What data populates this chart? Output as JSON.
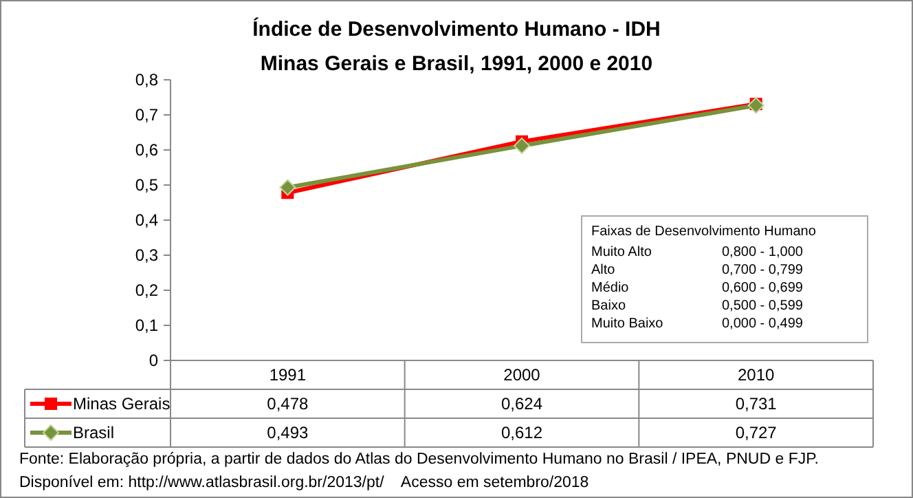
{
  "chart_data": {
    "type": "line",
    "title": "Índice de Desenvolvimento Humano - IDH",
    "subtitle": "Minas Gerais e Brasil, 1991, 2000 e 2010",
    "categories": [
      "1991",
      "2000",
      "2010"
    ],
    "series": [
      {
        "name": "Minas Gerais",
        "color": "#ff0000",
        "marker": "square",
        "values": [
          0.478,
          0.624,
          0.731
        ],
        "value_labels": [
          "0,478",
          "0,624",
          "0,731"
        ]
      },
      {
        "name": "Brasil",
        "color": "#77933c",
        "marker": "diamond",
        "values": [
          0.493,
          0.612,
          0.727
        ],
        "value_labels": [
          "0,493",
          "0,612",
          "0,727"
        ]
      }
    ],
    "ylim": [
      0,
      0.8
    ],
    "yticks": [
      {
        "value": 0,
        "label": "0"
      },
      {
        "value": 0.1,
        "label": "0,1"
      },
      {
        "value": 0.2,
        "label": "0,2"
      },
      {
        "value": 0.3,
        "label": "0,3"
      },
      {
        "value": 0.4,
        "label": "0,4"
      },
      {
        "value": 0.5,
        "label": "0,5"
      },
      {
        "value": 0.6,
        "label": "0,6"
      },
      {
        "value": 0.7,
        "label": "0,7"
      },
      {
        "value": 0.8,
        "label": "0,8"
      }
    ],
    "legend": "bottom left",
    "grid": false,
    "line_style": "solid",
    "annotations": [
      "Faixas de Desenvolvimento Humano",
      "Muito Alto",
      "0,800 - 1,000",
      "Alto",
      "0,700 - 0,799",
      "Médio",
      "0,600 - 0,699",
      "Baixo",
      "0,500 - 0,599",
      "Muito Baixo",
      "0,000 - 0,499",
      "Fonte: Elaboração própria, a partir de dados do Atlas do Desenvolvimento Humano no Brasil / IPEA, PNUD e FJP.",
      "Disponível em: http://www.atlasbrasil.org.br/2013/pt/    Acesso em setembro/2018"
    ]
  }
}
